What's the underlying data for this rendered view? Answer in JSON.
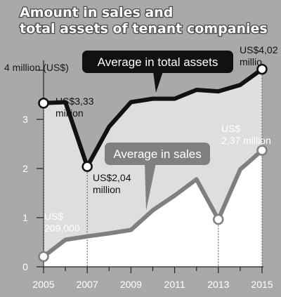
{
  "chart_data": {
    "type": "line",
    "title_lines": [
      "Amount in sales and",
      "total assets of tenant companies"
    ],
    "ylabel": "4 million (US$)",
    "x_tick_labels": [
      "2005",
      "2007",
      "2009",
      "2011",
      "2013",
      "2015"
    ],
    "y_tick_labels": [
      "0",
      "1",
      "2",
      "3"
    ],
    "xlim": [
      2005,
      2015
    ],
    "ylim": [
      0,
      4
    ],
    "grid": false,
    "colors": {
      "background": "#a9a9a9",
      "assets_line": "#111111",
      "sales_line": "#7f7f7f",
      "assets_fill": "#dedede",
      "sales_fill": "#ffffff",
      "callout_dark": "#111111",
      "callout_gray": "#808080"
    },
    "series": [
      {
        "name": "Average in total assets",
        "points": [
          [
            2005,
            3.33
          ],
          [
            2006,
            3.35
          ],
          [
            2007,
            2.04
          ],
          [
            2008,
            2.85
          ],
          [
            2009,
            3.35
          ],
          [
            2010,
            3.42
          ],
          [
            2011,
            3.42
          ],
          [
            2012,
            3.6
          ],
          [
            2013,
            3.57
          ],
          [
            2014,
            3.7
          ],
          [
            2015,
            4.02
          ]
        ]
      },
      {
        "name": "Average in sales",
        "points": [
          [
            2005,
            0.209
          ],
          [
            2006,
            0.55
          ],
          [
            2007,
            0.62
          ],
          [
            2008,
            0.68
          ],
          [
            2009,
            0.75
          ],
          [
            2010,
            1.15
          ],
          [
            2011,
            1.45
          ],
          [
            2012,
            1.78
          ],
          [
            2013,
            0.964
          ],
          [
            2014,
            1.98
          ],
          [
            2015,
            2.37
          ]
        ]
      }
    ],
    "annotations": [
      {
        "year": 2005,
        "series": 0,
        "lines": [
          "US$3,33",
          "million"
        ]
      },
      {
        "year": 2007,
        "series": 0,
        "lines": [
          "US$2,04",
          "million"
        ]
      },
      {
        "year": 2015,
        "series": 0,
        "lines": [
          "US$4,02",
          "millio"
        ]
      },
      {
        "year": 2005,
        "series": 1,
        "lines": [
          "US$",
          "209,000"
        ]
      },
      {
        "year": 2013,
        "series": 1,
        "lines": [
          "US$",
          "964,000"
        ]
      },
      {
        "year": 2015,
        "series": 1,
        "lines": [
          "US$",
          "2,37 million"
        ]
      }
    ]
  }
}
